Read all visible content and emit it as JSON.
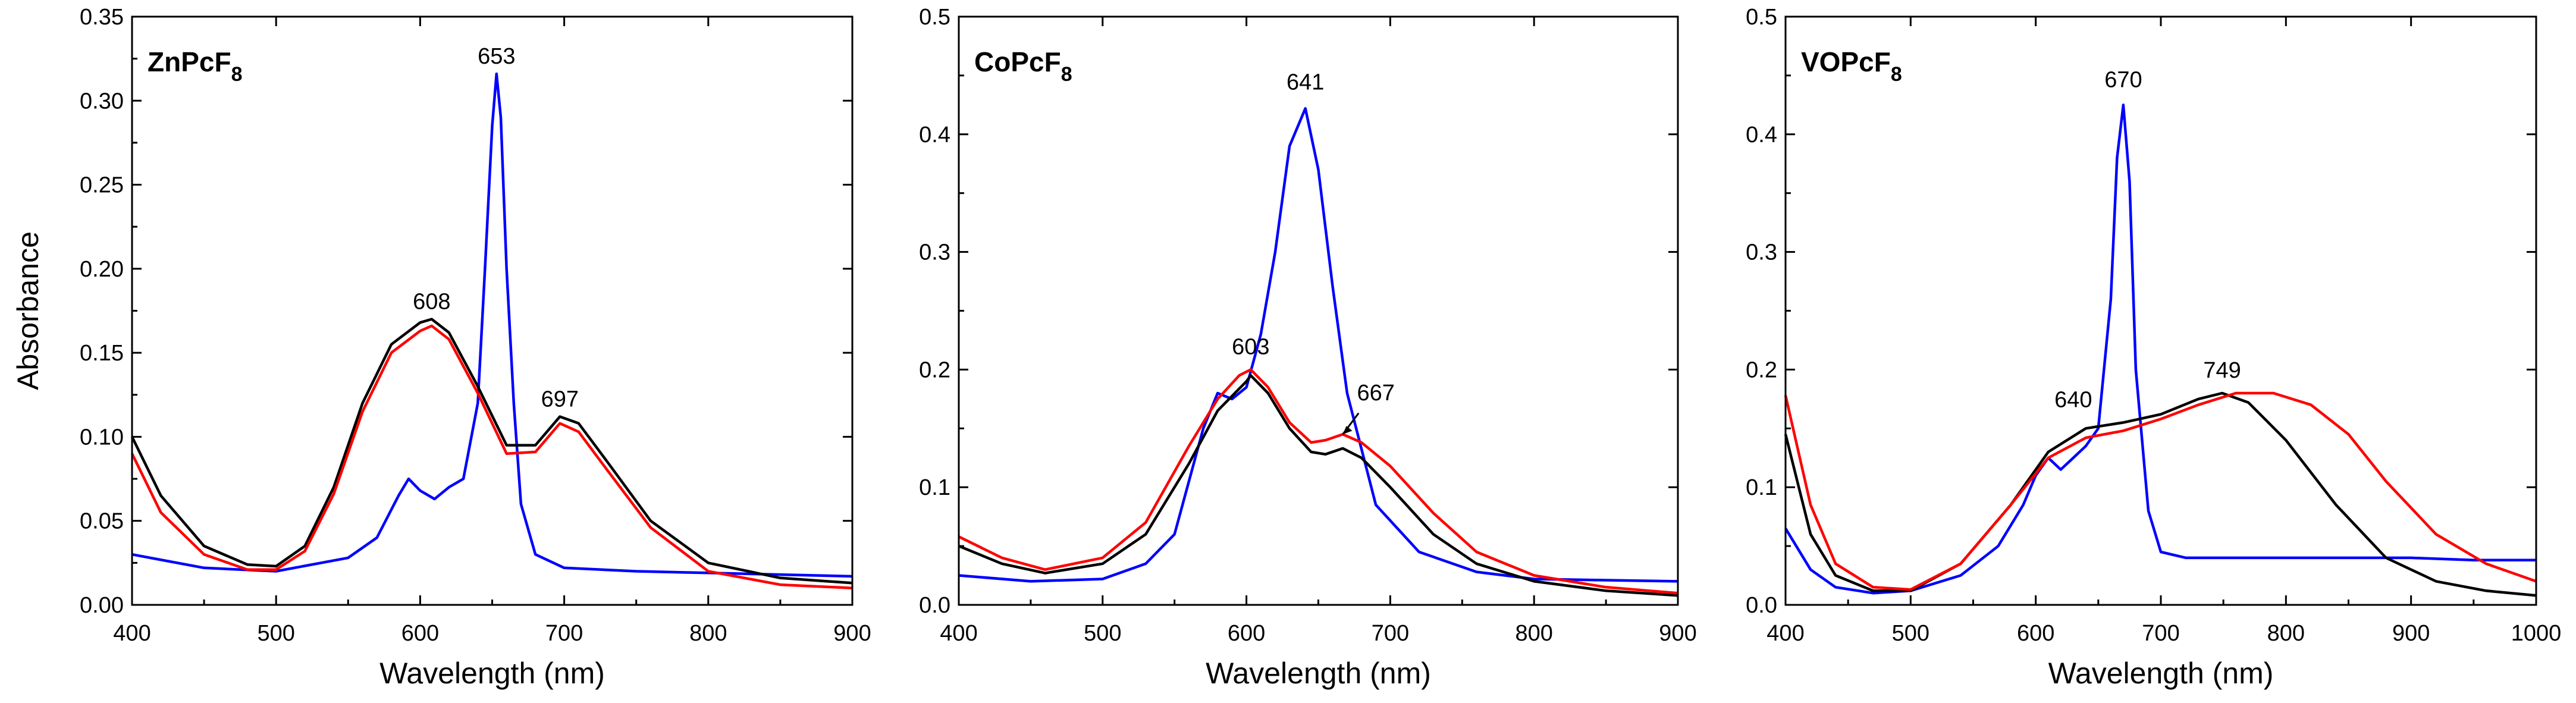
{
  "ylabel": "Absorbance",
  "chart_data": [
    {
      "type": "line",
      "title": "ZnPcF",
      "title_sub": "8",
      "xlabel": "Wavelength (nm)",
      "ylabel": "Absorbance",
      "xlim": [
        400,
        900
      ],
      "ylim": [
        0,
        0.35
      ],
      "xticks": [
        400,
        500,
        600,
        700,
        800,
        900
      ],
      "yticks": [
        0.0,
        0.05,
        0.1,
        0.15,
        0.2,
        0.25,
        0.3,
        0.35
      ],
      "ytick_labels": [
        "0.00",
        "0.05",
        "0.10",
        "0.15",
        "0.20",
        "0.25",
        "0.30",
        "0.35"
      ],
      "grid": false,
      "series": [
        {
          "color": "#0000ff",
          "x": [
            400,
            450,
            500,
            550,
            570,
            585,
            592,
            600,
            610,
            620,
            630,
            640,
            645,
            650,
            653,
            656,
            660,
            665,
            670,
            680,
            700,
            750,
            800,
            850,
            900
          ],
          "y": [
            0.03,
            0.022,
            0.02,
            0.028,
            0.04,
            0.065,
            0.075,
            0.068,
            0.063,
            0.07,
            0.075,
            0.12,
            0.2,
            0.285,
            0.316,
            0.29,
            0.2,
            0.12,
            0.06,
            0.03,
            0.022,
            0.02,
            0.019,
            0.018,
            0.017
          ]
        },
        {
          "color": "#000000",
          "x": [
            400,
            420,
            450,
            480,
            500,
            520,
            540,
            560,
            580,
            600,
            608,
            620,
            640,
            660,
            680,
            697,
            710,
            730,
            760,
            800,
            850,
            900
          ],
          "y": [
            0.1,
            0.065,
            0.035,
            0.024,
            0.023,
            0.035,
            0.07,
            0.12,
            0.155,
            0.168,
            0.17,
            0.162,
            0.13,
            0.095,
            0.095,
            0.112,
            0.108,
            0.085,
            0.05,
            0.025,
            0.016,
            0.013
          ]
        },
        {
          "color": "#ff0000",
          "x": [
            400,
            420,
            450,
            480,
            500,
            520,
            540,
            560,
            580,
            600,
            608,
            620,
            640,
            660,
            680,
            697,
            710,
            730,
            760,
            800,
            850,
            900
          ],
          "y": [
            0.09,
            0.055,
            0.03,
            0.021,
            0.021,
            0.032,
            0.066,
            0.115,
            0.15,
            0.163,
            0.166,
            0.158,
            0.126,
            0.09,
            0.091,
            0.108,
            0.103,
            0.08,
            0.046,
            0.02,
            0.012,
            0.01
          ]
        }
      ],
      "annotations": [
        {
          "text": "653",
          "x": 653,
          "y": 0.322
        },
        {
          "text": "608",
          "x": 608,
          "y": 0.176
        },
        {
          "text": "697",
          "x": 697,
          "y": 0.118
        }
      ]
    },
    {
      "type": "line",
      "title": "CoPcF",
      "title_sub": "8",
      "xlabel": "Wavelength (nm)",
      "ylabel": "",
      "xlim": [
        400,
        900
      ],
      "ylim": [
        0,
        0.5
      ],
      "xticks": [
        400,
        500,
        600,
        700,
        800,
        900
      ],
      "yticks": [
        0.0,
        0.1,
        0.2,
        0.3,
        0.4,
        0.5
      ],
      "ytick_labels": [
        "0.0",
        "0.1",
        "0.2",
        "0.3",
        "0.4",
        "0.5"
      ],
      "grid": false,
      "series": [
        {
          "color": "#0000ff",
          "x": [
            400,
            450,
            500,
            530,
            550,
            570,
            580,
            590,
            600,
            610,
            620,
            630,
            641,
            650,
            660,
            670,
            690,
            720,
            760,
            800,
            850,
            900
          ],
          "y": [
            0.025,
            0.02,
            0.022,
            0.035,
            0.06,
            0.15,
            0.18,
            0.175,
            0.185,
            0.23,
            0.3,
            0.39,
            0.422,
            0.37,
            0.27,
            0.18,
            0.085,
            0.045,
            0.028,
            0.022,
            0.021,
            0.02
          ]
        },
        {
          "color": "#000000",
          "x": [
            400,
            430,
            460,
            500,
            530,
            560,
            580,
            600,
            603,
            615,
            630,
            645,
            655,
            667,
            680,
            700,
            730,
            760,
            800,
            850,
            900
          ],
          "y": [
            0.05,
            0.035,
            0.027,
            0.035,
            0.06,
            0.12,
            0.165,
            0.19,
            0.195,
            0.18,
            0.15,
            0.13,
            0.128,
            0.133,
            0.125,
            0.1,
            0.06,
            0.035,
            0.02,
            0.012,
            0.008
          ]
        },
        {
          "color": "#ff0000",
          "x": [
            400,
            430,
            460,
            500,
            530,
            560,
            580,
            595,
            603,
            615,
            630,
            645,
            655,
            667,
            680,
            700,
            730,
            760,
            800,
            850,
            900
          ],
          "y": [
            0.058,
            0.04,
            0.03,
            0.04,
            0.07,
            0.135,
            0.175,
            0.195,
            0.2,
            0.185,
            0.155,
            0.138,
            0.14,
            0.145,
            0.138,
            0.118,
            0.078,
            0.045,
            0.025,
            0.015,
            0.01
          ]
        }
      ],
      "annotations": [
        {
          "text": "641",
          "x": 641,
          "y": 0.438
        },
        {
          "text": "603",
          "x": 603,
          "y": 0.213
        },
        {
          "text": "667",
          "x": 690,
          "y": 0.174
        }
      ]
    },
    {
      "type": "line",
      "title": "VOPcF",
      "title_sub": "8",
      "xlabel": "Wavelength (nm)",
      "ylabel": "",
      "xlim": [
        400,
        1000
      ],
      "ylim": [
        0,
        0.5
      ],
      "xticks": [
        400,
        500,
        600,
        700,
        800,
        900,
        1000
      ],
      "yticks": [
        0.0,
        0.1,
        0.2,
        0.3,
        0.4,
        0.5
      ],
      "ytick_labels": [
        "0.0",
        "0.1",
        "0.2",
        "0.3",
        "0.4",
        "0.5"
      ],
      "grid": false,
      "series": [
        {
          "color": "#0000ff",
          "x": [
            400,
            420,
            440,
            470,
            500,
            540,
            570,
            590,
            600,
            610,
            620,
            630,
            640,
            650,
            660,
            665,
            670,
            675,
            680,
            690,
            700,
            720,
            760,
            800,
            850,
            900,
            950,
            1000
          ],
          "y": [
            0.065,
            0.03,
            0.015,
            0.01,
            0.012,
            0.025,
            0.05,
            0.085,
            0.11,
            0.125,
            0.115,
            0.125,
            0.135,
            0.15,
            0.26,
            0.38,
            0.425,
            0.36,
            0.2,
            0.08,
            0.045,
            0.04,
            0.04,
            0.04,
            0.04,
            0.04,
            0.038,
            0.038
          ]
        },
        {
          "color": "#000000",
          "x": [
            400,
            420,
            440,
            470,
            500,
            540,
            580,
            610,
            640,
            670,
            700,
            730,
            749,
            770,
            800,
            840,
            880,
            920,
            960,
            1000
          ],
          "y": [
            0.145,
            0.06,
            0.025,
            0.012,
            0.012,
            0.035,
            0.085,
            0.13,
            0.15,
            0.155,
            0.162,
            0.175,
            0.18,
            0.172,
            0.14,
            0.085,
            0.04,
            0.02,
            0.012,
            0.008
          ]
        },
        {
          "color": "#ff0000",
          "x": [
            400,
            420,
            440,
            470,
            500,
            540,
            580,
            610,
            640,
            670,
            700,
            730,
            760,
            790,
            820,
            850,
            880,
            920,
            960,
            1000
          ],
          "y": [
            0.178,
            0.085,
            0.035,
            0.015,
            0.013,
            0.035,
            0.085,
            0.125,
            0.142,
            0.148,
            0.158,
            0.17,
            0.18,
            0.18,
            0.17,
            0.145,
            0.105,
            0.06,
            0.035,
            0.02
          ]
        }
      ],
      "annotations": [
        {
          "text": "670",
          "x": 670,
          "y": 0.44
        },
        {
          "text": "749",
          "x": 749,
          "y": 0.193
        },
        {
          "text": "640",
          "x": 630,
          "y": 0.168
        }
      ]
    }
  ]
}
